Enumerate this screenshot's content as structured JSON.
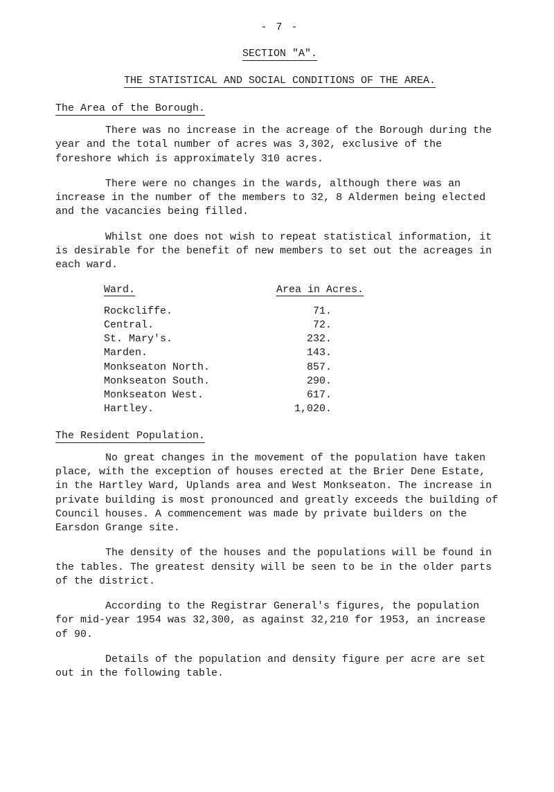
{
  "page_number": "- 7 -",
  "section_title": "SECTION \"A\".",
  "main_title": "THE STATISTICAL AND SOCIAL CONDITIONS OF THE AREA.",
  "heading_area": "The Area of the Borough.",
  "para_area_1": "There was no increase in the acreage of the Borough during the year and the total number of acres was 3,302, exclusive of the foreshore which is approximately 310 acres.",
  "para_area_2": "There were no changes in the wards, although there was an increase in the number of the members to 32, 8 Aldermen being elected and the vacancies being filled.",
  "para_area_3": "Whilst one does not wish to repeat statistical information, it is desirable for the benefit of new members to set out the acreages in each ward.",
  "table": {
    "header_left": "Ward.",
    "header_right": "Area in Acres.",
    "rows": [
      {
        "ward": "Rockcliffe.",
        "acres": "71."
      },
      {
        "ward": "Central.",
        "acres": "72."
      },
      {
        "ward": "St. Mary's.",
        "acres": "232."
      },
      {
        "ward": "Marden.",
        "acres": "143."
      },
      {
        "ward": "Monkseaton North.",
        "acres": "857."
      },
      {
        "ward": "Monkseaton South.",
        "acres": "290."
      },
      {
        "ward": "Monkseaton West.",
        "acres": "617."
      },
      {
        "ward": "Hartley.",
        "acres": "1,020."
      }
    ]
  },
  "heading_pop": "The Resident Population.",
  "para_pop_1": "No great changes in the movement of the population have taken place, with the exception of houses erected at the Brier Dene Estate, in the Hartley Ward, Uplands area and West Monkseaton.  The increase in private building is most pronounced and greatly exceeds the building of Council houses.  A commencement was made by private builders on the Earsdon Grange site.",
  "para_pop_2": "The density of the houses and the populations will be found in the tables.  The greatest density will be seen to be in the older parts of the district.",
  "para_pop_3": "According to the Registrar General's figures, the population for mid-year 1954 was 32,300, as against 32,210 for 1953, an increase of 90.",
  "para_pop_4": "Details of the population and density figure per acre are set out in the following table."
}
